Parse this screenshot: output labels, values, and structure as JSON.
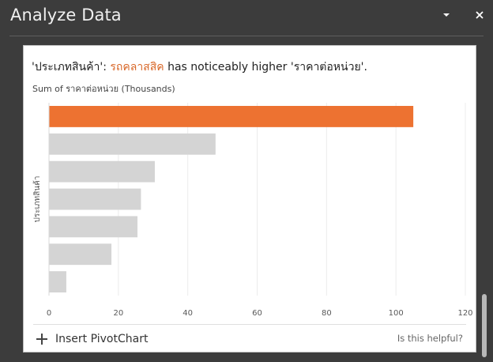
{
  "pane": {
    "title": "Analyze Data",
    "menu_icon": "caret-down-icon",
    "close_icon": "close-icon"
  },
  "insight": {
    "prefix": "'ประเภทสินค้า': ",
    "highlight": "รถคลาสสิค",
    "suffix": " has noticeably higher 'ราคาต่อหน่วย'.",
    "highlight_color": "#d9692b"
  },
  "chart_data": {
    "type": "bar",
    "orientation": "horizontal",
    "title": "Sum of ราคาต่อหน่วย (Thousands)",
    "ylabel": "ประเภทสินค้า",
    "xlabel": "",
    "values": [
      105,
      48,
      30.5,
      26.5,
      25.5,
      18,
      5
    ],
    "highlight_index": 0,
    "highlight_color": "#ed7231",
    "bar_color": "#d4d4d4",
    "xlim": [
      0,
      120
    ],
    "xticks": [
      0,
      20,
      40,
      60,
      80,
      100,
      120
    ],
    "grid": true
  },
  "footer": {
    "insert_label": "Insert PivotChart",
    "helpful_label": "Is this helpful?"
  }
}
